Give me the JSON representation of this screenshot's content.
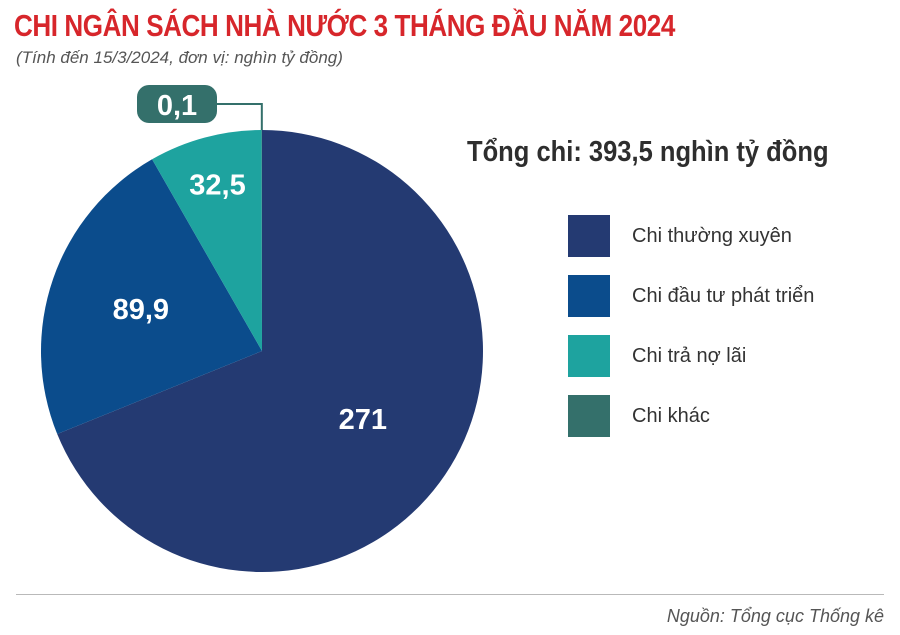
{
  "title": "CHI NGÂN SÁCH NHÀ NƯỚC 3 THÁNG ĐẦU NĂM 2024",
  "subtitle": "(Tính đến 15/3/2024, đơn vị: nghìn tỷ đồng)",
  "total_label": "Tổng chi: 393,5 nghìn tỷ đồng",
  "source": "Nguồn: Tổng cục Thống kê",
  "chart_data": {
    "type": "pie",
    "title": "CHI NGÂN SÁCH NHÀ NƯỚC 3 THÁNG ĐẦU NĂM 2024",
    "unit": "nghìn tỷ đồng",
    "total": 393.5,
    "legend_position": "right",
    "slices": [
      {
        "name": "Chi thường xuyên",
        "value": 271,
        "label": "271",
        "color": "#243a72"
      },
      {
        "name": "Chi đầu tư phát triển",
        "value": 89.9,
        "label": "89,9",
        "color": "#0b4c8c"
      },
      {
        "name": "Chi trả nợ lãi",
        "value": 32.5,
        "label": "32,5",
        "color": "#1ea39f"
      },
      {
        "name": "Chi khác",
        "value": 0.1,
        "label": "0,1",
        "color": "#34706b"
      }
    ]
  }
}
